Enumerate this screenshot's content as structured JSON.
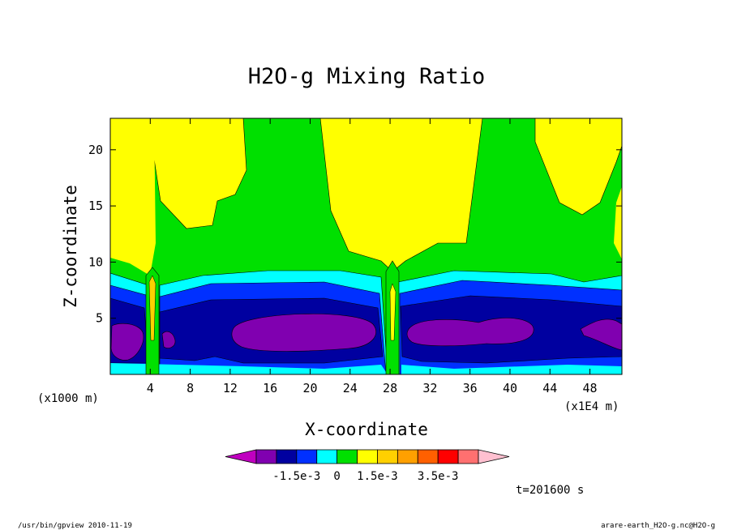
{
  "chart_data": {
    "type": "heatmap",
    "title": "H2O-g Mixing Ratio",
    "xlabel": "X-coordinate",
    "ylabel": "Z-coordinate",
    "x_unit_left": "(x1000 m)",
    "x_unit_right": "(x1E4 m)",
    "xlim": [
      0,
      51.2
    ],
    "ylim": [
      0,
      22.8
    ],
    "x_ticks": [
      4,
      8,
      12,
      16,
      20,
      24,
      28,
      32,
      36,
      40,
      44,
      48
    ],
    "y_ticks": [
      5,
      10,
      15,
      20
    ],
    "colorbar": {
      "colors": [
        "#c000c0",
        "#8000b0",
        "#0000a0",
        "#0030ff",
        "#00ffff",
        "#00e000",
        "#ffff00",
        "#ffd000",
        "#ffa000",
        "#ff6000",
        "#ff0000",
        "#ff7070",
        "#ffc0d0"
      ],
      "tick_labels": [
        "-1.5e-3",
        "0",
        "1.5e-3",
        "3.5e-3"
      ]
    },
    "time_label": "t=201600 s"
  },
  "footer": {
    "left": "/usr/bin/gpview   2010-11-19",
    "right": "arare-earth_H2O-g.nc@H2O-g"
  }
}
